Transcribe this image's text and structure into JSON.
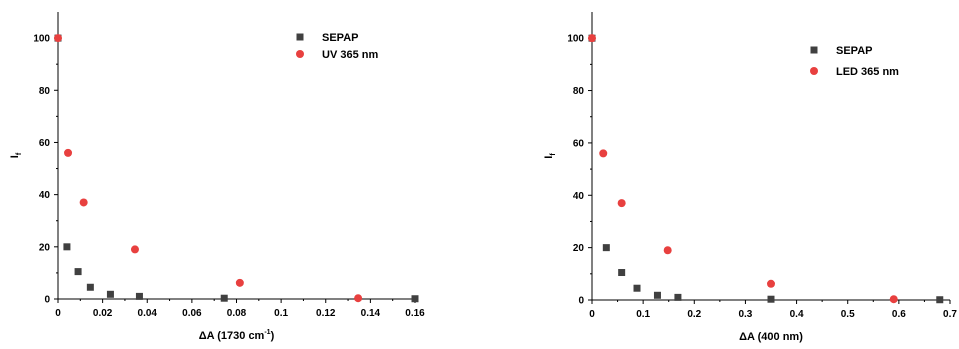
{
  "chart_data": [
    {
      "type": "scatter",
      "xlabel": "ΔA (1730 cm",
      "xlabel_sup": "-1",
      "xlabel_end": ")",
      "ylabel": "I",
      "ylabel_sub": "f",
      "xlim": [
        0,
        0.16
      ],
      "ylim": [
        0,
        110
      ],
      "xticks": [
        "0",
        "0.02",
        "0.04",
        "0.06",
        "0.08",
        "0.1",
        "0.12",
        "0.14",
        "0.16"
      ],
      "xtick_values": [
        0,
        0.02,
        0.04,
        0.06,
        0.08,
        0.1,
        0.12,
        0.14,
        0.16
      ],
      "yticks": [
        "0",
        "20",
        "40",
        "60",
        "80",
        "100"
      ],
      "ytick_values": [
        0,
        20,
        40,
        60,
        80,
        100
      ],
      "legend_position": "top-right",
      "series": [
        {
          "name": "SEPAP",
          "marker": "square",
          "color": "#404040",
          "x": [
            0,
            0.004,
            0.009,
            0.0145,
            0.0235,
            0.0365,
            0.0745,
            0.16
          ],
          "y": [
            100,
            20,
            10.5,
            4.5,
            1.8,
            1.0,
            0.3,
            0.1
          ]
        },
        {
          "name": "UV 365 nm",
          "marker": "circle",
          "color": "#e8403f",
          "x": [
            0,
            0.0045,
            0.0115,
            0.0345,
            0.0815,
            0.1345
          ],
          "y": [
            100,
            56,
            37,
            19,
            6.2,
            0.3
          ]
        }
      ]
    },
    {
      "type": "scatter",
      "xlabel": "ΔA (400 nm)",
      "ylabel": "I",
      "ylabel_sub": "f",
      "xlim": [
        0,
        0.7
      ],
      "ylim": [
        0,
        110
      ],
      "xticks": [
        "0",
        "0.1",
        "0.2",
        "0.3",
        "0.4",
        "0.5",
        "0.6",
        "0.7"
      ],
      "xtick_values": [
        0,
        0.1,
        0.2,
        0.3,
        0.4,
        0.5,
        0.6,
        0.7
      ],
      "yticks": [
        "0",
        "20",
        "40",
        "60",
        "80",
        "100"
      ],
      "ytick_values": [
        0,
        20,
        40,
        60,
        80,
        100
      ],
      "legend_position": "top-right",
      "series": [
        {
          "name": "SEPAP",
          "marker": "square",
          "color": "#404040",
          "x": [
            0,
            0.028,
            0.058,
            0.088,
            0.128,
            0.168,
            0.35,
            0.68
          ],
          "y": [
            100,
            20,
            10.5,
            4.5,
            1.8,
            1.0,
            0.3,
            0.1
          ]
        },
        {
          "name": "LED 365 nm",
          "marker": "circle",
          "color": "#e8403f",
          "x": [
            0,
            0.022,
            0.058,
            0.148,
            0.35,
            0.59
          ],
          "y": [
            100,
            56,
            37,
            19,
            6.2,
            0.3
          ]
        }
      ]
    }
  ]
}
